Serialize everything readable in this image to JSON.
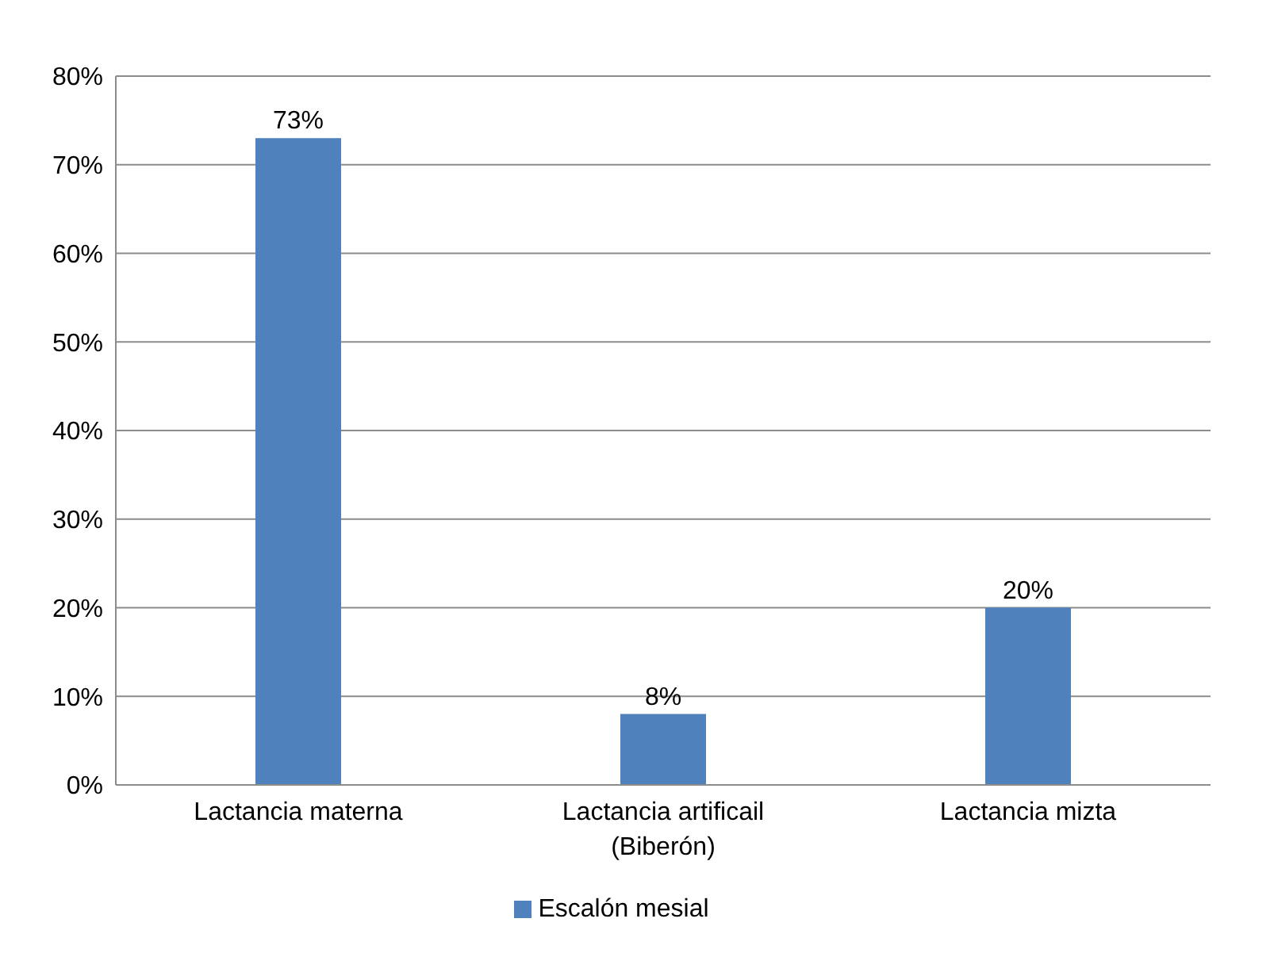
{
  "chart_data": {
    "type": "bar",
    "categories": [
      "Lactancia materna",
      "Lactancia artificail (Biberón)",
      "Lactancia mizta"
    ],
    "series": [
      {
        "name": "Escalón mesial",
        "color": "#4f81bd",
        "values": [
          73,
          8,
          20
        ],
        "value_labels": [
          "73%",
          "8%",
          "20%"
        ]
      }
    ],
    "ylim": [
      0,
      80
    ],
    "yticks": [
      {
        "value": 0,
        "label": "0%"
      },
      {
        "value": 10,
        "label": "10%"
      },
      {
        "value": 20,
        "label": "20%"
      },
      {
        "value": 30,
        "label": "30%"
      },
      {
        "value": 40,
        "label": "40%"
      },
      {
        "value": 50,
        "label": "50%"
      },
      {
        "value": 60,
        "label": "60%"
      },
      {
        "value": 70,
        "label": "70%"
      },
      {
        "value": 80,
        "label": "80%"
      }
    ],
    "grid": "y",
    "legend": "bottom"
  }
}
